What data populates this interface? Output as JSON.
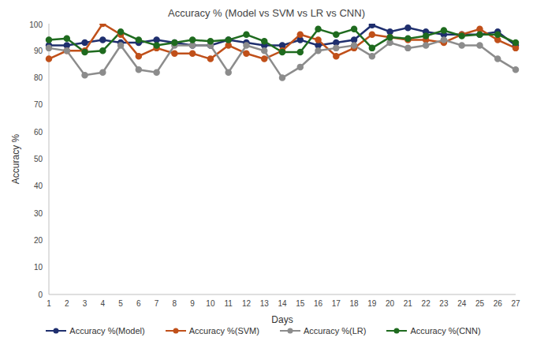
{
  "chart_data": {
    "type": "line",
    "title": "Accuracy % (Model vs SVM vs LR vs CNN)",
    "x_label": "Days",
    "y_label": "Accuracy %",
    "categories": [
      "1",
      "2",
      "3",
      "4",
      "5",
      "6",
      "7",
      "8",
      "9",
      "10",
      "11",
      "12",
      "13",
      "14",
      "15",
      "16",
      "17",
      "18",
      "19",
      "20",
      "21",
      "22",
      "23",
      "24",
      "25",
      "26",
      "27"
    ],
    "series": [
      {
        "name": "Accuracy %(Model)",
        "color": "#1f2f6e",
        "marker": "circle",
        "line_style": "solid",
        "values": [
          92,
          92,
          93,
          94,
          93,
          93,
          94,
          93,
          92,
          92,
          94,
          93,
          92,
          92,
          94,
          92,
          93,
          94,
          99.5,
          97,
          98.5,
          97,
          96,
          96,
          96,
          97,
          92
        ]
      },
      {
        "name": "Accuracy %(SVM)",
        "color": "#c0501a",
        "marker": "circle",
        "line_style": "solid",
        "values": [
          87,
          90,
          90,
          100,
          96,
          88,
          91,
          89,
          89,
          87,
          92,
          89,
          87,
          90,
          96,
          94,
          88,
          91,
          96,
          95,
          94,
          94,
          93,
          96,
          98,
          94,
          91
        ]
      },
      {
        "name": "Accuracy %(LR)",
        "color": "#8c8c8c",
        "marker": "circle",
        "line_style": "solid",
        "values": [
          91,
          90,
          81,
          82,
          92,
          83,
          82,
          92,
          92,
          92,
          82,
          92,
          90,
          80,
          84,
          90,
          91,
          92,
          88,
          93,
          91,
          92,
          94,
          92,
          92,
          87,
          83
        ]
      },
      {
        "name": "Accuracy %(CNN)",
        "color": "#1f6b1f",
        "marker": "circle",
        "line_style": "solid",
        "values": [
          94,
          94.5,
          89.5,
          90,
          97,
          94,
          92,
          93,
          94,
          93.5,
          94,
          96,
          93.5,
          89.5,
          89.5,
          98,
          96,
          98,
          91,
          95,
          94.5,
          95.5,
          97.5,
          95.5,
          96,
          96,
          93
        ]
      }
    ],
    "ylim": [
      0,
      100
    ],
    "yticks": [
      0,
      10,
      20,
      30,
      40,
      50,
      60,
      70,
      80,
      90,
      100
    ],
    "grid": false,
    "legend": "bottom"
  }
}
